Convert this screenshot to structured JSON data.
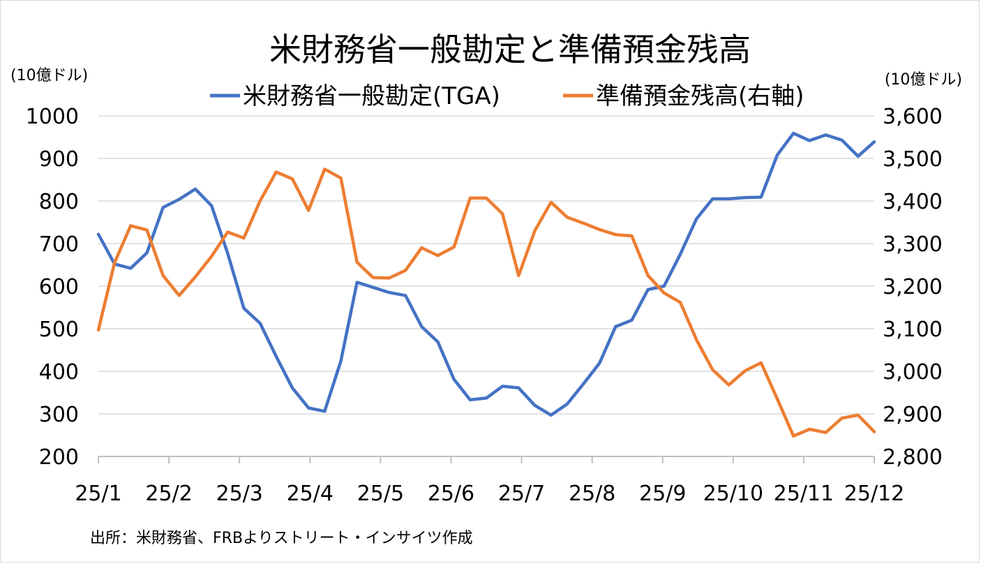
{
  "chart_data": {
    "type": "line",
    "title": "米財務省一般勘定と準備預金残高",
    "y_left_unit": "(10億ドル)",
    "y_right_unit": "(10億ドル)",
    "y_left_range": [
      200,
      1000
    ],
    "y_right_range": [
      2800,
      3600
    ],
    "y_left_ticks": [
      "1000",
      "900",
      "800",
      "700",
      "600",
      "500",
      "400",
      "300",
      "200"
    ],
    "y_right_ticks": [
      "3,600",
      "3,500",
      "3,400",
      "3,300",
      "3,200",
      "3,100",
      "3,000",
      "2,900",
      "2,800"
    ],
    "x_ticks": [
      "25/1",
      "25/2",
      "25/3",
      "25/4",
      "25/5",
      "25/6",
      "25/7",
      "25/8",
      "25/9",
      "25/10",
      "25/11",
      "25/12"
    ],
    "grid": true,
    "legend_position": "top",
    "series": [
      {
        "name": "米財務省一般勘定(TGA)",
        "axis": "left",
        "color": "#4472C4",
        "values": [
          722,
          652,
          642,
          678,
          785,
          804,
          828,
          789,
          677,
          548,
          513,
          435,
          361,
          314,
          306,
          424,
          609,
          597,
          585,
          578,
          505,
          469,
          381,
          333,
          337,
          365,
          361,
          320,
          297,
          323,
          370,
          419,
          505,
          520,
          592,
          600,
          675,
          758,
          805,
          805,
          808,
          809,
          908,
          959,
          942,
          955,
          943,
          905,
          939
        ]
      },
      {
        "name": "準備預金残高(右軸)",
        "axis": "right",
        "color": "#ED7D31",
        "values": [
          3097,
          3255,
          3342,
          3332,
          3225,
          3178,
          3222,
          3270,
          3327,
          3313,
          3400,
          3468,
          3452,
          3378,
          3475,
          3454,
          3256,
          3220,
          3219,
          3237,
          3290,
          3272,
          3292,
          3407,
          3407,
          3370,
          3225,
          3330,
          3397,
          3362,
          3348,
          3333,
          3321,
          3318,
          3225,
          3184,
          3162,
          3074,
          3004,
          2968,
          3001,
          3020,
          2935,
          2848,
          2864,
          2856,
          2890,
          2897,
          2858
        ]
      }
    ],
    "source": "出所：米財務省、FRBよりストリート・インサイツ作成"
  }
}
